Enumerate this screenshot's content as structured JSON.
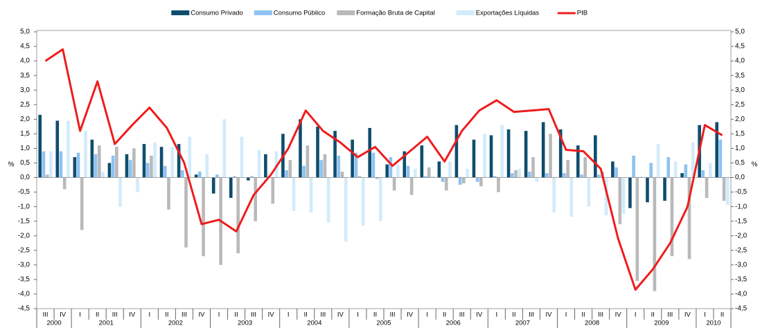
{
  "chart_data": {
    "type": "bar_line",
    "categories": [
      "III",
      "IV",
      "I",
      "II",
      "III",
      "IV",
      "I",
      "II",
      "III",
      "IV",
      "I",
      "II",
      "III",
      "IV",
      "I",
      "II",
      "III",
      "IV",
      "I",
      "II",
      "III",
      "IV",
      "I",
      "II",
      "III",
      "IV",
      "I",
      "II",
      "III",
      "IV",
      "I",
      "II",
      "III",
      "IV",
      "I",
      "II",
      "III",
      "IV",
      "I",
      "II"
    ],
    "years": [
      "2000",
      "2001",
      "2002",
      "2003",
      "2004",
      "2005",
      "2006",
      "2007",
      "2008",
      "2009",
      "2010"
    ],
    "y_label": "%",
    "y2_label": "%",
    "ylim": [
      -4.5,
      5.0
    ],
    "yticks": [
      {
        "value": 5.0,
        "label": "5,0"
      },
      {
        "value": 4.5,
        "label": "4,5"
      },
      {
        "value": 4.0,
        "label": "4,0"
      },
      {
        "value": 3.5,
        "label": "3,5"
      },
      {
        "value": 3.0,
        "label": "3,0"
      },
      {
        "value": 2.5,
        "label": "2,5"
      },
      {
        "value": 2.0,
        "label": "2,0"
      },
      {
        "value": 1.5,
        "label": "1,5"
      },
      {
        "value": 1.0,
        "label": "1,0"
      },
      {
        "value": 0.5,
        "label": "0,5"
      },
      {
        "value": 0,
        "label": "0,0"
      },
      {
        "value": -0.5,
        "label": "-0,5"
      },
      {
        "value": -1.0,
        "label": "-1,0"
      },
      {
        "value": -1.5,
        "label": "-1,5"
      },
      {
        "value": -2.0,
        "label": "-2,0"
      },
      {
        "value": -2.5,
        "label": "-2,5"
      },
      {
        "value": -3.0,
        "label": "-3,0"
      },
      {
        "value": -3.5,
        "label": "-3,5"
      },
      {
        "value": -4.0,
        "label": "-4,0"
      },
      {
        "value": -4.5,
        "label": "-4,5"
      }
    ],
    "y2lim": [
      -4.5,
      5.0
    ],
    "y2ticks": [
      {
        "value": 5.0,
        "label": "5,0"
      },
      {
        "value": 4.5,
        "label": "4,5"
      },
      {
        "value": 4.0,
        "label": "4,0"
      },
      {
        "value": 3.5,
        "label": "3,5"
      },
      {
        "value": 3.0,
        "label": "3,0"
      },
      {
        "value": 2.5,
        "label": "2,5"
      },
      {
        "value": 2.0,
        "label": "2,0"
      },
      {
        "value": 1.5,
        "label": "1,5"
      },
      {
        "value": 1.0,
        "label": "1,0"
      },
      {
        "value": 0.5,
        "label": "0,5"
      },
      {
        "value": 0,
        "label": "0,0"
      },
      {
        "value": -0.5,
        "label": "-0,5"
      },
      {
        "value": -1.0,
        "label": "-1,0"
      },
      {
        "value": -1.5,
        "label": "-1,5"
      },
      {
        "value": -2.0,
        "label": "-2,0"
      },
      {
        "value": -2.5,
        "label": "-2,5"
      },
      {
        "value": -3.0,
        "label": "-3,0"
      },
      {
        "value": -3.5,
        "label": "-3,5"
      },
      {
        "value": -4.0,
        "label": "-4,0"
      },
      {
        "value": -4.5,
        "label": "-4,5"
      }
    ],
    "series": [
      {
        "name": "Consumo Privado",
        "type": "bar",
        "color": "#0f4d6e",
        "values": [
          2.15,
          1.95,
          0.7,
          1.3,
          0.5,
          0.8,
          1.15,
          1.05,
          1.15,
          0.1,
          -0.55,
          -0.7,
          -0.1,
          0.8,
          1.5,
          2.0,
          1.75,
          1.6,
          1.3,
          1.7,
          0.45,
          0.9,
          1.1,
          0.55,
          1.8,
          1.3,
          1.45,
          1.65,
          1.6,
          1.9,
          1.65,
          1.1,
          1.45,
          0.55,
          -1.05,
          -0.85,
          -0.8,
          0.15,
          1.8,
          1.9
        ]
      },
      {
        "name": "Consumo Público",
        "type": "bar",
        "color": "#8ec2f2",
        "values": [
          0.9,
          0.9,
          0.85,
          0.8,
          0.75,
          0.6,
          0.5,
          0.4,
          0.25,
          0.2,
          0.1,
          0.05,
          0.05,
          0.05,
          0.25,
          0.4,
          0.6,
          0.75,
          0.85,
          0.85,
          0.7,
          0.4,
          0.05,
          -0.15,
          -0.25,
          -0.15,
          0.05,
          0.15,
          0.2,
          0.15,
          0.15,
          0.1,
          0.1,
          0.35,
          0.75,
          0.5,
          0.7,
          0.45,
          0.25,
          1.3
        ]
      },
      {
        "name": "Formação Bruta de Capital",
        "type": "bar",
        "color": "#b9b9b9",
        "values": [
          0.1,
          -0.4,
          -1.8,
          1.1,
          1.05,
          1.0,
          0.75,
          -1.1,
          -2.4,
          -2.7,
          -3.0,
          -2.6,
          -1.5,
          -0.9,
          0.6,
          1.1,
          0.8,
          0.2,
          0.05,
          -0.05,
          -0.45,
          -0.6,
          0.35,
          -0.45,
          -0.2,
          -0.3,
          -0.5,
          0.25,
          0.7,
          1.5,
          0.6,
          0.7,
          0.2,
          -1.6,
          -3.55,
          -3.9,
          -2.7,
          -2.8,
          -0.7,
          -0.8
        ]
      },
      {
        "name": "Exportações Líquidas",
        "type": "bar",
        "color": "#d2ebfb",
        "values": [
          0.9,
          1.95,
          1.6,
          0.2,
          -1.0,
          -0.5,
          1.2,
          1.05,
          1.4,
          0.8,
          2.0,
          1.4,
          0.95,
          0.9,
          -1.15,
          -1.2,
          -1.55,
          -2.2,
          -1.65,
          -1.5,
          0.45,
          0.3,
          0.05,
          0.55,
          0.3,
          1.5,
          1.8,
          0.3,
          -0.15,
          -1.2,
          -1.35,
          -1.0,
          -1.3,
          -1.25,
          0.05,
          1.15,
          0.55,
          1.2,
          0.5,
          -0.95
        ]
      },
      {
        "name": "PIB",
        "type": "line",
        "color": "#ee1c1c",
        "values": [
          4.0,
          4.4,
          1.6,
          3.3,
          1.15,
          1.8,
          2.4,
          1.7,
          0.5,
          -1.6,
          -1.45,
          -1.85,
          -0.6,
          0.1,
          1.0,
          2.3,
          1.6,
          1.2,
          0.7,
          1.05,
          0.4,
          0.9,
          1.4,
          0.55,
          1.6,
          2.3,
          2.65,
          2.25,
          2.3,
          2.35,
          0.95,
          0.9,
          0.3,
          -2.1,
          -3.85,
          -3.15,
          -2.25,
          -1.0,
          1.8,
          1.45
        ]
      }
    ]
  }
}
